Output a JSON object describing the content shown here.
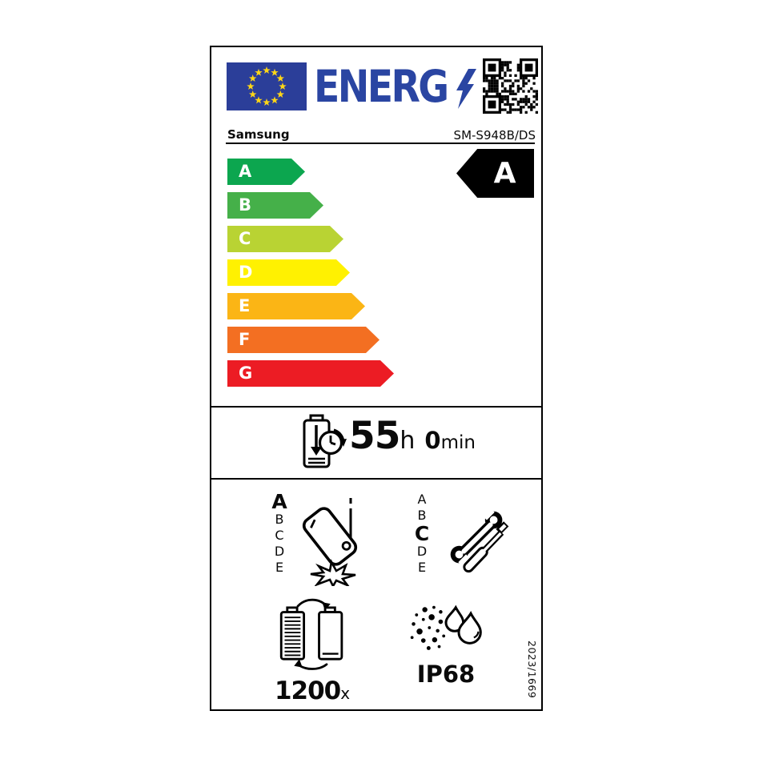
{
  "header": {
    "logo_text": "ENERG",
    "logo_color": "#2a45a2",
    "flag_color": "#2b3e99",
    "star_color": "#ffd617",
    "brand": "Samsung",
    "model": "SM-S948B/DS"
  },
  "energy_scale": {
    "rated_class": "A",
    "rated_class_bg": "#000000",
    "items": [
      {
        "label": "A",
        "color": "#0ca64f"
      },
      {
        "label": "B",
        "color": "#45b049"
      },
      {
        "label": "C",
        "color": "#b9d333"
      },
      {
        "label": "D",
        "color": "#fff101"
      },
      {
        "label": "E",
        "color": "#fbb515"
      },
      {
        "label": "F",
        "color": "#f36f22"
      },
      {
        "label": "G",
        "color": "#ec1c24"
      }
    ]
  },
  "battery_endurance": {
    "hours": "55",
    "hours_unit": "h",
    "minutes": "0",
    "minutes_unit": "min"
  },
  "drop_resistance": {
    "scale": [
      "A",
      "B",
      "C",
      "D",
      "E"
    ],
    "rated": "A"
  },
  "repairability": {
    "scale": [
      "A",
      "B",
      "C",
      "D",
      "E"
    ],
    "rated": "C"
  },
  "battery_cycles": {
    "value": "1200",
    "unit": "x"
  },
  "ingress_protection": {
    "rating": "IP68"
  },
  "regulation_number": "2023/1669",
  "icons": {
    "eu_flag": "eu-flag",
    "logo_bolt": "lightning-bolt-icon",
    "qr_code": "qr-code",
    "battery_endurance": "battery-clock-icon",
    "drop_resistance": "falling-phone-icon",
    "repairability": "wrench-screwdriver-icon",
    "battery_cycles": "battery-recharge-cycle-icon",
    "ingress_protection": "dust-water-icon"
  }
}
